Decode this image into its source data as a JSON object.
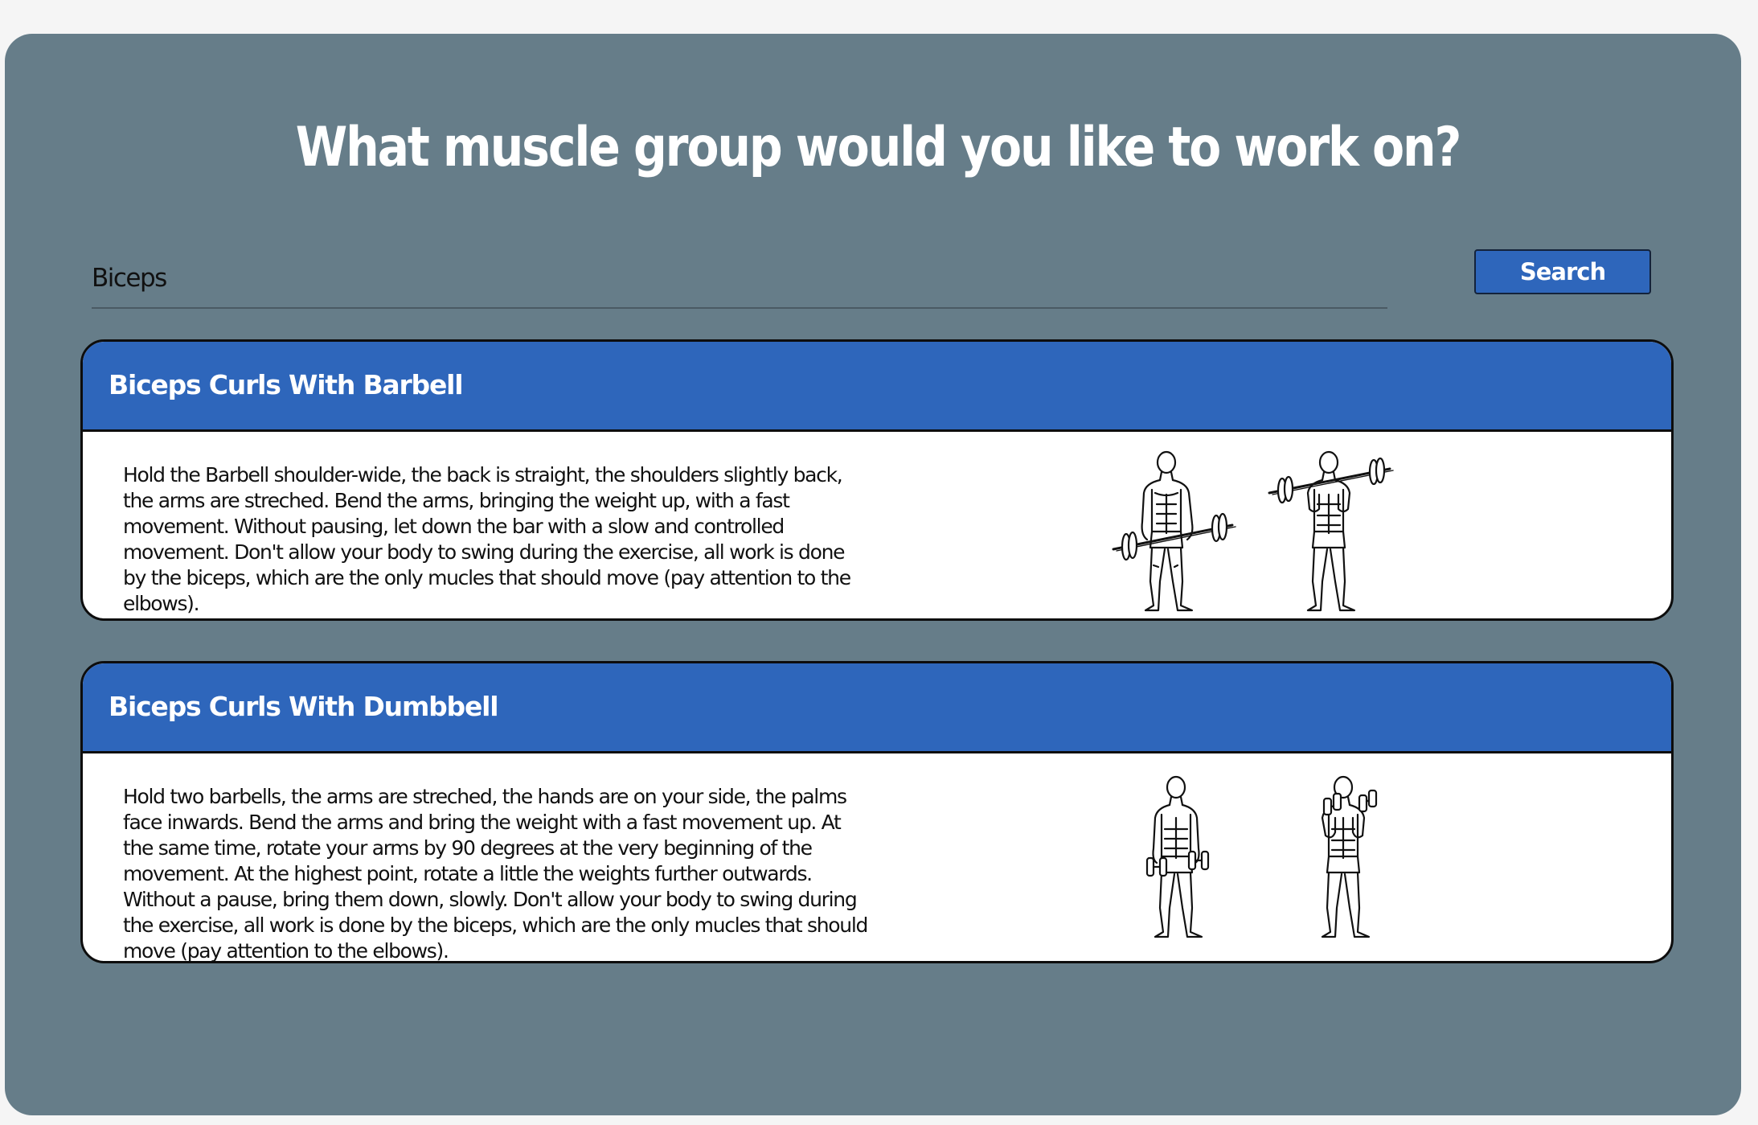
{
  "header": {
    "title": "What muscle group would you like to work on?"
  },
  "search": {
    "value": "Biceps",
    "placeholder": "",
    "button_label": "Search"
  },
  "results": [
    {
      "title": "Biceps Curls With Barbell",
      "description": "Hold the Barbell shoulder-wide, the back is straight, the shoulders slightly back, the arms are streched. Bend the arms, bringing the weight up, with a fast movement. Without pausing, let down the bar with a slow and controlled movement. Don't allow your body to swing during the exercise, all work is done by the biceps, which are the only mucles that should move (pay attention to the elbows).",
      "illustration": "barbell-curl-illustration"
    },
    {
      "title": "Biceps Curls With Dumbbell",
      "description": "Hold two barbells, the arms are streched, the hands are on your side, the palms face inwards. Bend the arms and bring the weight with a fast movement up. At the same time, rotate your arms by 90 degrees at the very beginning of the movement. At the highest point, rotate a little the weights further outwards. Without a pause, bring them down, slowly. Don't allow your body to swing during the exercise, all work is done by the biceps, which are the only mucles that should move (pay attention to the elbows).",
      "illustration": "dumbbell-curl-illustration"
    }
  ],
  "colors": {
    "panel_bg": "#667d89",
    "accent": "#2e66bb",
    "card_bg": "#ffffff"
  }
}
